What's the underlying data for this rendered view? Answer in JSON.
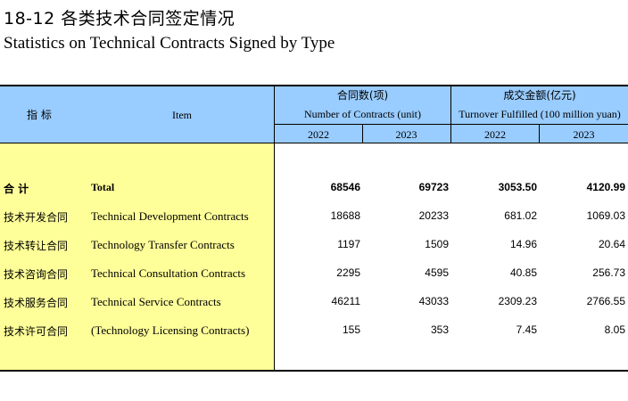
{
  "title": {
    "cn": "18-12  各类技术合同签定情况",
    "en": "Statistics on Technical Contracts Signed by Type"
  },
  "header": {
    "indicator_cn": "指    标",
    "item_en": "Item",
    "group1_cn": "合同数(项)",
    "group1_en": "Number of Contracts (unit)",
    "group2_cn": "成交金额(亿元)",
    "group2_en": "Turnover Fulfilled (100 million yuan)",
    "years": [
      "2022",
      "2023",
      "2022",
      "2023"
    ]
  },
  "rows": [
    {
      "cn": "合        计",
      "en": "Total",
      "v1": "68546",
      "v2": "69723",
      "v3": "3053.50",
      "v4": "4120.99",
      "bold": true
    },
    {
      "cn": "技术开发合同",
      "en": "Technical Development Contracts",
      "v1": "18688",
      "v2": "20233",
      "v3": "681.02",
      "v4": "1069.03"
    },
    {
      "cn": "技术转让合同",
      "en": "Technology Transfer Contracts",
      "v1": "1197",
      "v2": "1509",
      "v3": "14.96",
      "v4": "20.64"
    },
    {
      "cn": "技术咨询合同",
      "en": "Technical Consultation Contracts",
      "v1": "2295",
      "v2": "4595",
      "v3": "40.85",
      "v4": "256.73"
    },
    {
      "cn": "技术服务合同",
      "en": "Technical Service Contracts",
      "v1": "46211",
      "v2": "43033",
      "v3": "2309.23",
      "v4": "2766.55"
    },
    {
      "cn": "技术许可合同",
      "en": "(Technology Licensing Contracts)",
      "v1": "155",
      "v2": "353",
      "v3": "7.45",
      "v4": "8.05"
    }
  ]
}
